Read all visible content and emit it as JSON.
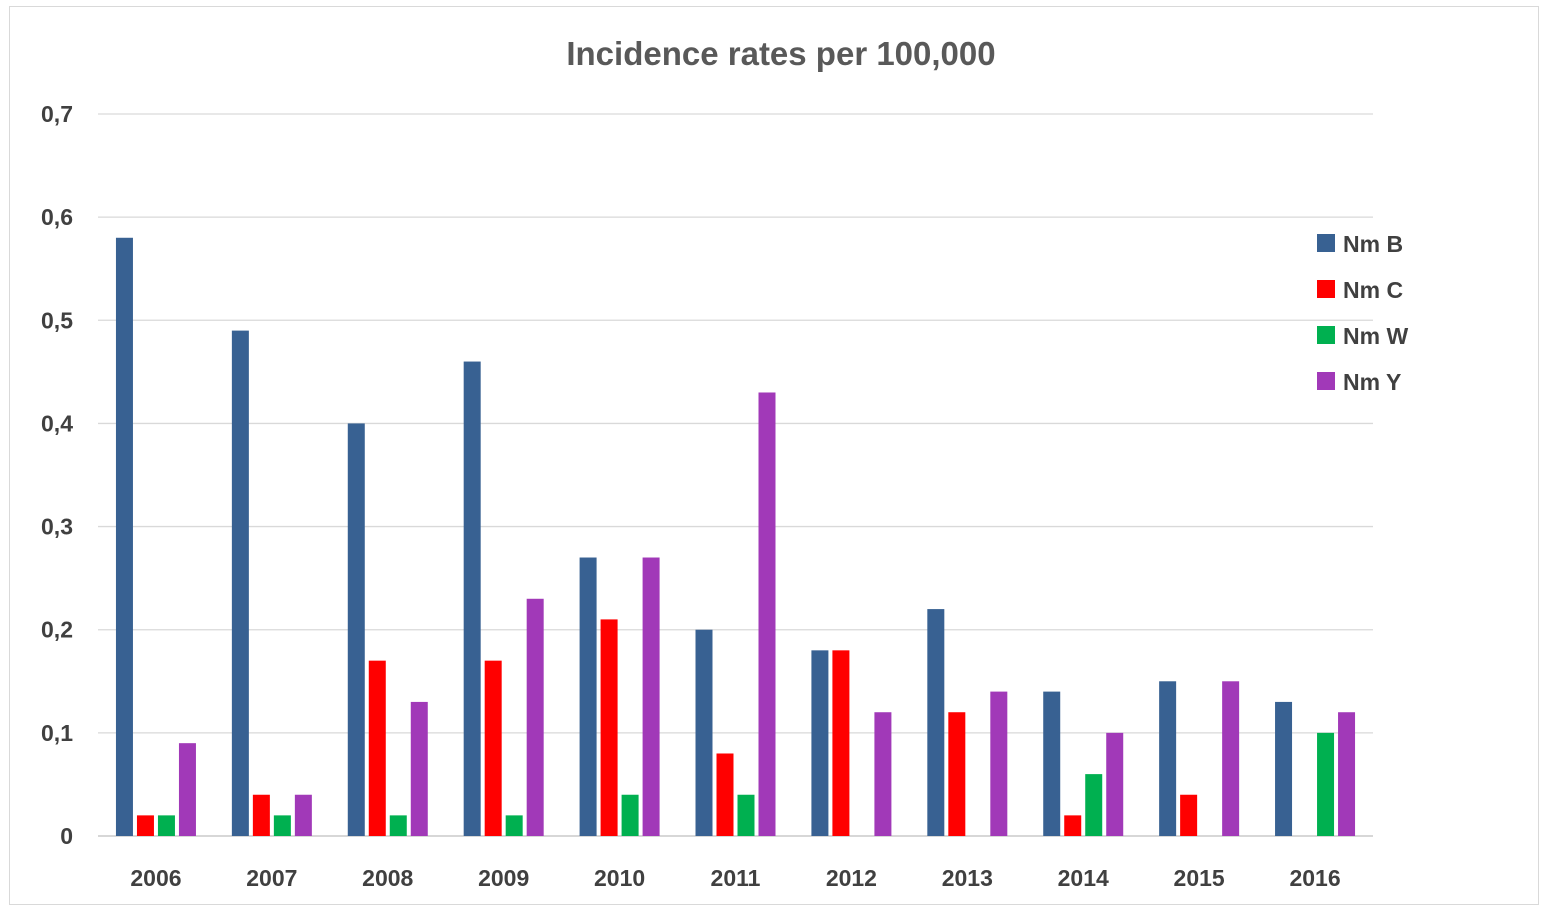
{
  "chart_data": {
    "type": "bar",
    "title": "Incidence rates per 100,000",
    "xlabel": "",
    "ylabel": "",
    "categories": [
      "2006",
      "2007",
      "2008",
      "2009",
      "2010",
      "2011",
      "2012",
      "2013",
      "2014",
      "2015",
      "2016"
    ],
    "series": [
      {
        "name": "Nm B",
        "color": "#386192",
        "values": [
          0.58,
          0.49,
          0.4,
          0.46,
          0.27,
          0.2,
          0.18,
          0.22,
          0.14,
          0.15,
          0.13
        ]
      },
      {
        "name": "Nm C",
        "color": "#ff0000",
        "values": [
          0.02,
          0.04,
          0.17,
          0.17,
          0.21,
          0.08,
          0.18,
          0.12,
          0.02,
          0.04,
          0
        ]
      },
      {
        "name": "Nm W",
        "color": "#00b050",
        "values": [
          0.02,
          0.02,
          0.02,
          0.02,
          0.04,
          0.04,
          0,
          0,
          0.06,
          0,
          0.1
        ]
      },
      {
        "name": "Nm Y",
        "color": "#a139b8",
        "values": [
          0.09,
          0.04,
          0.13,
          0.23,
          0.27,
          0.43,
          0.12,
          0.14,
          0.1,
          0.15,
          0.12
        ]
      }
    ],
    "ylim": [
      0,
      0.7
    ],
    "yticks": [
      "0",
      "0,1",
      "0,2",
      "0,3",
      "0,4",
      "0,5",
      "0,6",
      "0,7"
    ],
    "grid": true,
    "legend_position": "right"
  }
}
